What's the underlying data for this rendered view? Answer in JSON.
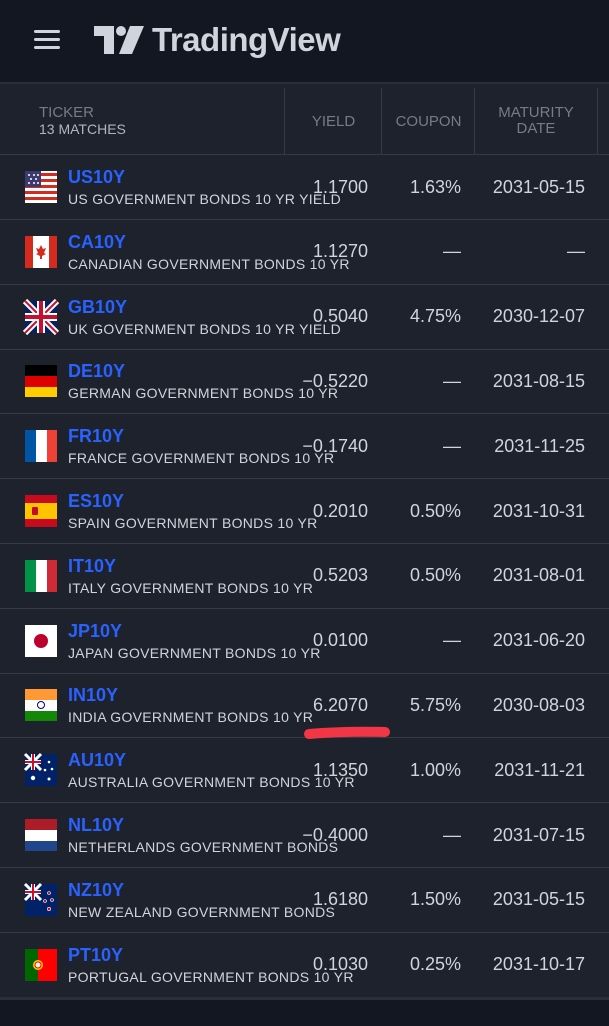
{
  "app": {
    "name": "TradingView"
  },
  "header": {
    "ticker": "TICKER",
    "matches": "13 MATCHES",
    "yield": "YIELD",
    "coupon": "COUPON",
    "maturity_l1": "MATURITY",
    "maturity_l2": "DATE"
  },
  "rows": [
    {
      "symbol": "US10Y",
      "desc": "US GOVERNMENT BONDS 10 YR YIELD",
      "yield": "1.1700",
      "coupon": "1.63%",
      "maturity": "2031-05-15",
      "flag": "us"
    },
    {
      "symbol": "CA10Y",
      "desc": "CANADIAN GOVERNMENT BONDS 10 YR",
      "yield": "1.1270",
      "coupon": "—",
      "maturity": "—",
      "flag": "ca"
    },
    {
      "symbol": "GB10Y",
      "desc": "UK GOVERNMENT BONDS 10 YR YIELD",
      "yield": "0.5040",
      "coupon": "4.75%",
      "maturity": "2030-12-07",
      "flag": "gb"
    },
    {
      "symbol": "DE10Y",
      "desc": "GERMAN GOVERNMENT BONDS 10 YR",
      "yield": "−0.5220",
      "coupon": "—",
      "maturity": "2031-08-15",
      "flag": "de"
    },
    {
      "symbol": "FR10Y",
      "desc": "FRANCE GOVERNMENT BONDS 10 YR",
      "yield": "−0.1740",
      "coupon": "—",
      "maturity": "2031-11-25",
      "flag": "fr"
    },
    {
      "symbol": "ES10Y",
      "desc": "SPAIN GOVERNMENT BONDS 10 YR",
      "yield": "0.2010",
      "coupon": "0.50%",
      "maturity": "2031-10-31",
      "flag": "es"
    },
    {
      "symbol": "IT10Y",
      "desc": "ITALY GOVERNMENT BONDS 10 YR",
      "yield": "0.5203",
      "coupon": "0.50%",
      "maturity": "2031-08-01",
      "flag": "it"
    },
    {
      "symbol": "JP10Y",
      "desc": "JAPAN GOVERNMENT BONDS 10 YR",
      "yield": "0.0100",
      "coupon": "—",
      "maturity": "2031-06-20",
      "flag": "jp"
    },
    {
      "symbol": "IN10Y",
      "desc": "INDIA GOVERNMENT BONDS 10 YR",
      "yield": "6.2070",
      "coupon": "5.75%",
      "maturity": "2030-08-03",
      "flag": "in"
    },
    {
      "symbol": "AU10Y",
      "desc": "AUSTRALIA GOVERNMENT BONDS 10 YR",
      "yield": "1.1350",
      "coupon": "1.00%",
      "maturity": "2031-11-21",
      "flag": "au"
    },
    {
      "symbol": "NL10Y",
      "desc": "NETHERLANDS GOVERNMENT BONDS",
      "yield": "−0.4000",
      "coupon": "—",
      "maturity": "2031-07-15",
      "flag": "nl"
    },
    {
      "symbol": "NZ10Y",
      "desc": "NEW ZEALAND GOVERNMENT BONDS",
      "yield": "1.6180",
      "coupon": "1.50%",
      "maturity": "2031-05-15",
      "flag": "nz"
    },
    {
      "symbol": "PT10Y",
      "desc": "PORTUGAL GOVERNMENT BONDS 10 YR",
      "yield": "0.1030",
      "coupon": "0.25%",
      "maturity": "2031-10-17",
      "flag": "pt"
    }
  ],
  "colors": {
    "accent": "#2962ff",
    "highlight": "#f23645"
  }
}
